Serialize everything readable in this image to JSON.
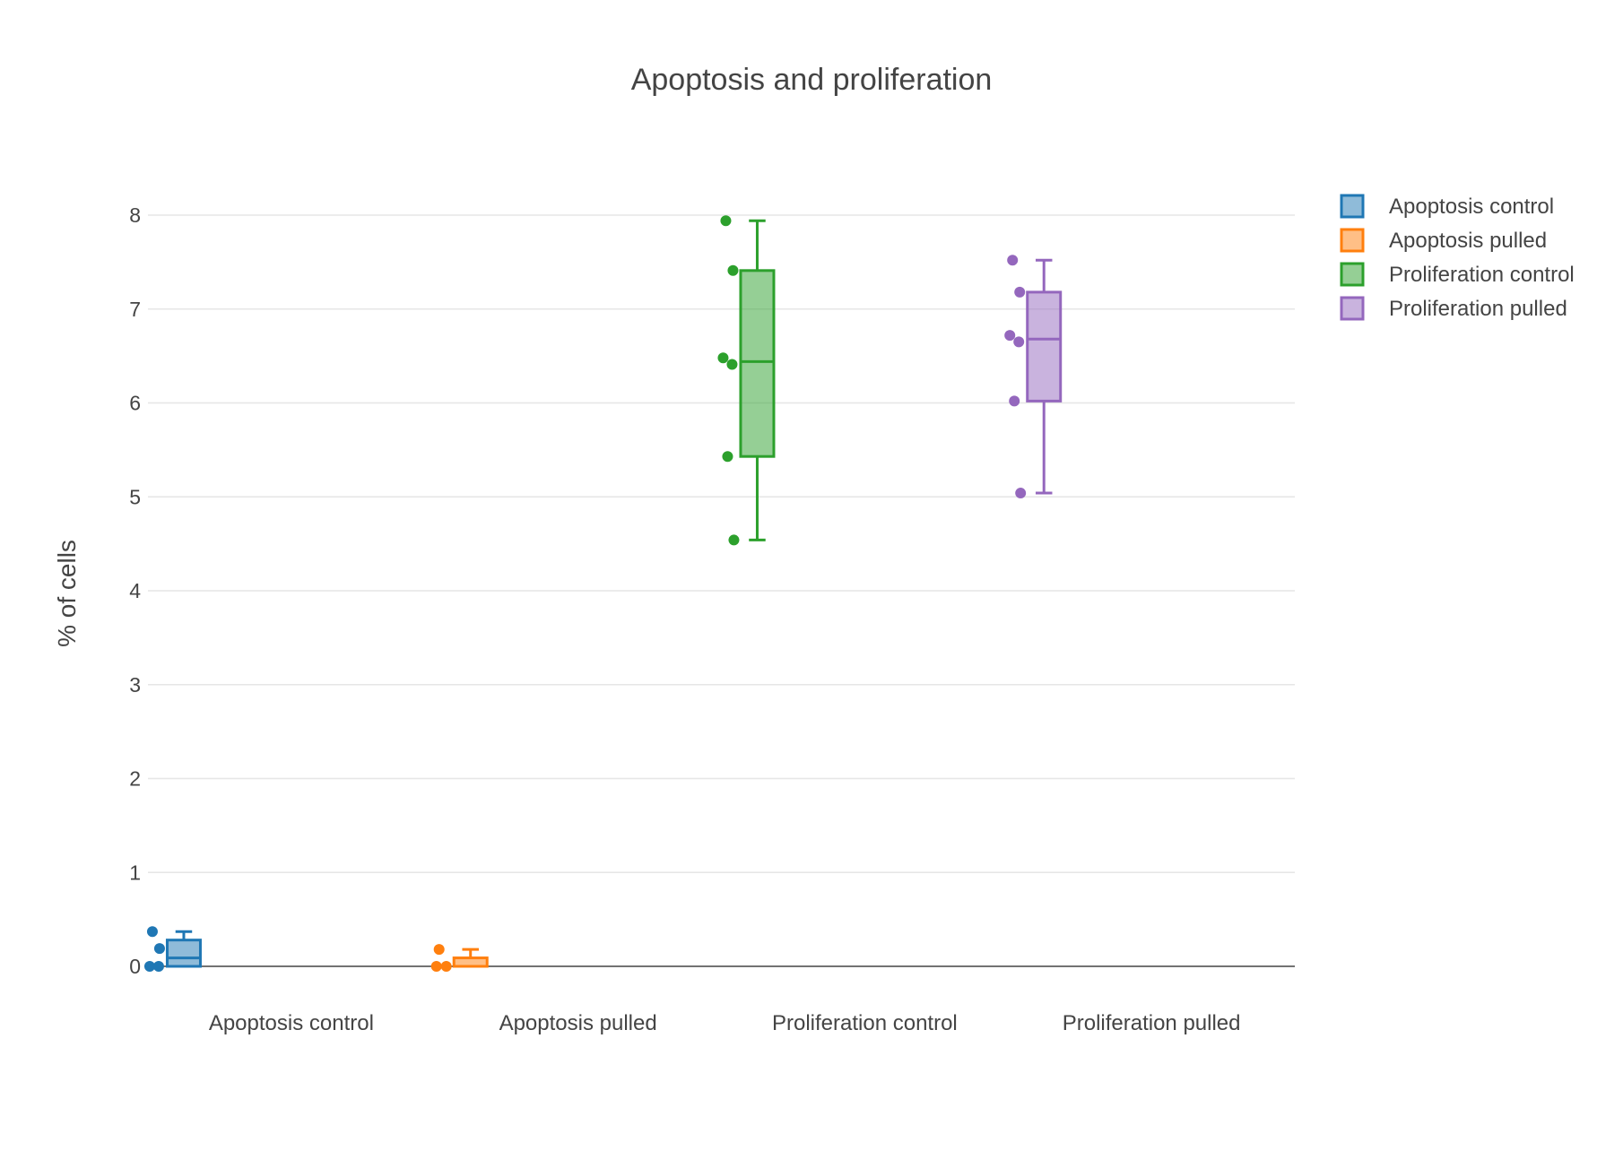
{
  "chart_data": {
    "type": "box",
    "title": "Apoptosis and proliferation",
    "xlabel": "",
    "ylabel": "% of cells",
    "ylim": [
      0,
      8.4
    ],
    "yticks": [
      0,
      1,
      2,
      3,
      4,
      5,
      6,
      7,
      8
    ],
    "grid": true,
    "legend_position": "top-right",
    "categories": [
      "Apoptosis control",
      "Apoptosis pulled",
      "Proliferation control",
      "Proliferation pulled"
    ],
    "series": [
      {
        "name": "Apoptosis control",
        "color": "#1f77b4",
        "points": [
          0.37,
          0.19,
          0.0,
          0.0
        ],
        "min": 0.0,
        "q1": 0.0,
        "median": 0.09,
        "q3": 0.28,
        "max": 0.37
      },
      {
        "name": "Apoptosis pulled",
        "color": "#ff7f0e",
        "points": [
          0.18,
          0.0,
          0.0
        ],
        "min": 0.0,
        "q1": 0.0,
        "median": 0.0,
        "q3": 0.09,
        "max": 0.18
      },
      {
        "name": "Proliferation control",
        "color": "#2ca02c",
        "points": [
          7.94,
          7.41,
          6.48,
          6.41,
          5.43,
          4.54
        ],
        "min": 4.54,
        "q1": 5.43,
        "median": 6.44,
        "q3": 7.41,
        "max": 7.94
      },
      {
        "name": "Proliferation pulled",
        "color": "#9467bd",
        "points": [
          7.52,
          7.18,
          6.72,
          6.65,
          6.02,
          5.04
        ],
        "min": 5.04,
        "q1": 6.02,
        "median": 6.68,
        "q3": 7.18,
        "max": 7.52
      }
    ]
  }
}
